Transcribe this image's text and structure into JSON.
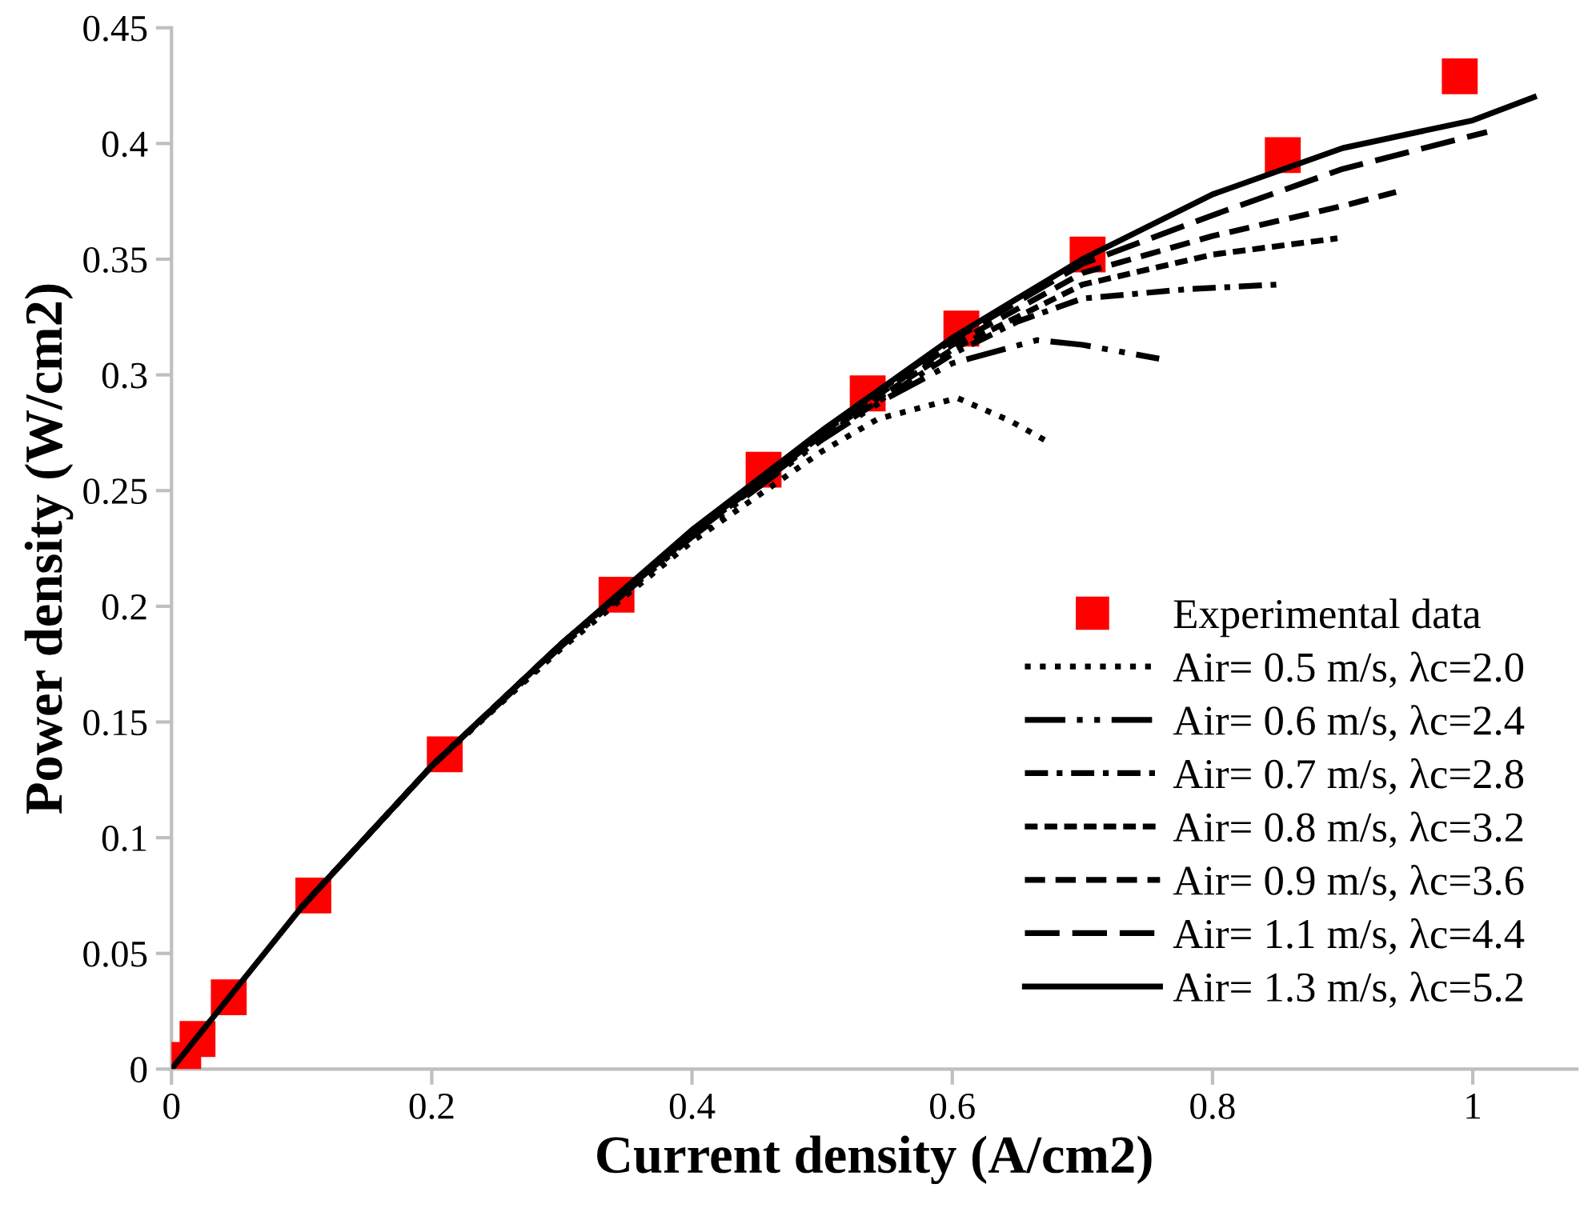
{
  "chart_data": {
    "type": "line",
    "xlabel": "Current density (A/cm2)",
    "ylabel": "Power density (W/cm2)",
    "xlim": [
      0,
      1.08
    ],
    "xticks": [
      0,
      0.2,
      0.4,
      0.6,
      0.8,
      1
    ],
    "ylim": [
      0,
      0.45
    ],
    "yticks": [
      0,
      0.05,
      0.1,
      0.15,
      0.2,
      0.25,
      0.3,
      0.35,
      0.4,
      0.45
    ],
    "grid": false,
    "legend": "bottom right",
    "series": [
      {
        "name": "Experimental data",
        "type": "scatter",
        "marker": "square",
        "color": "#ff0000",
        "x": [
          0.009,
          0.02,
          0.044,
          0.109,
          0.21,
          0.342,
          0.455,
          0.535,
          0.607,
          0.704,
          0.854,
          0.99
        ],
        "values": [
          0.004,
          0.013,
          0.031,
          0.075,
          0.136,
          0.205,
          0.259,
          0.292,
          0.32,
          0.352,
          0.395,
          0.429
        ]
      },
      {
        "name": "Air= 0.5 m/s, λc=2.0",
        "line_style": "dotted",
        "color": "#000000",
        "x": [
          0.1,
          0.2,
          0.3,
          0.4,
          0.5,
          0.543,
          0.604,
          0.645,
          0.677
        ],
        "values": [
          0.07,
          0.131,
          0.182,
          0.228,
          0.267,
          0.281,
          0.29,
          0.28,
          0.27
        ]
      },
      {
        "name": "Air= 0.6 m/s, λc=2.4",
        "line_style": "dashed",
        "color": "#000000",
        "x": [
          0.1,
          0.2,
          0.3,
          0.4,
          0.5,
          0.55,
          0.6,
          0.665,
          0.7,
          0.759
        ],
        "values": [
          0.07,
          0.131,
          0.183,
          0.23,
          0.272,
          0.29,
          0.305,
          0.315,
          0.313,
          0.307
        ]
      },
      {
        "name": "Air= 0.7 m/s, λc=2.8",
        "line_style": "dashed",
        "color": "#000000",
        "x": [
          0.1,
          0.2,
          0.3,
          0.4,
          0.5,
          0.6,
          0.65,
          0.7,
          0.78,
          0.849
        ],
        "values": [
          0.07,
          0.131,
          0.184,
          0.231,
          0.273,
          0.309,
          0.323,
          0.333,
          0.337,
          0.339
        ]
      },
      {
        "name": "Air= 0.8 m/s, λc=3.2",
        "line_style": "dashed",
        "color": "#000000",
        "x": [
          0.1,
          0.2,
          0.3,
          0.4,
          0.5,
          0.6,
          0.7,
          0.8,
          0.896
        ],
        "values": [
          0.07,
          0.131,
          0.184,
          0.231,
          0.274,
          0.311,
          0.339,
          0.352,
          0.359
        ]
      },
      {
        "name": "Air= 0.9 m/s, λc=3.6",
        "line_style": "dashed",
        "color": "#000000",
        "x": [
          0.1,
          0.2,
          0.3,
          0.4,
          0.5,
          0.6,
          0.7,
          0.8,
          0.9,
          0.941
        ],
        "values": [
          0.07,
          0.131,
          0.184,
          0.232,
          0.275,
          0.313,
          0.344,
          0.36,
          0.373,
          0.379
        ]
      },
      {
        "name": "Air= 1.1 m/s, λc=4.4",
        "line_style": "dashed",
        "color": "#000000",
        "x": [
          0.1,
          0.2,
          0.3,
          0.4,
          0.5,
          0.6,
          0.7,
          0.8,
          0.9,
          1.011
        ],
        "values": [
          0.07,
          0.131,
          0.184,
          0.232,
          0.276,
          0.315,
          0.348,
          0.369,
          0.389,
          0.405
        ]
      },
      {
        "name": "Air= 1.3 m/s, λc=5.2",
        "line_style": "solid",
        "color": "#000000",
        "x": [
          0,
          0.05,
          0.1,
          0.2,
          0.3,
          0.4,
          0.5,
          0.6,
          0.7,
          0.8,
          0.9,
          1.0,
          1.047
        ],
        "values": [
          0,
          0.035,
          0.07,
          0.131,
          0.184,
          0.233,
          0.276,
          0.316,
          0.35,
          0.378,
          0.398,
          0.41,
          0.42
        ]
      }
    ]
  }
}
